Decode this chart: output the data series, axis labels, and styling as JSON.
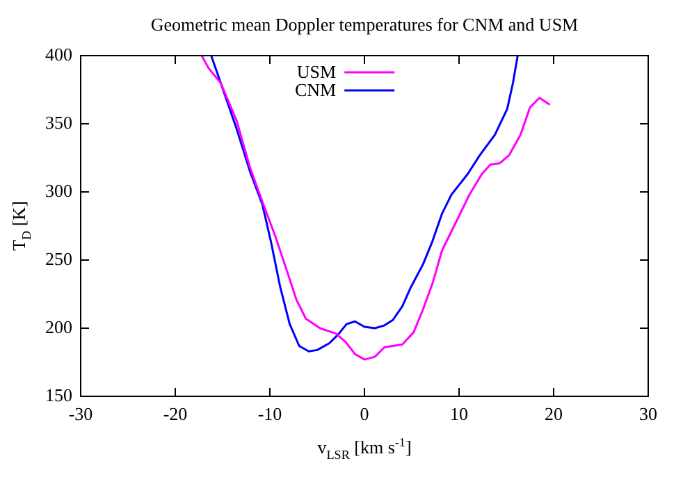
{
  "chart_data": {
    "type": "line",
    "title": "Geometric mean Doppler temperatures for CNM and USM",
    "xlabel": "v$_{LSR}$ [km s$^{-1}$]",
    "ylabel": "T$_{D}$ [K]",
    "xlim": [
      -30,
      30
    ],
    "xticks": [
      -30,
      -20,
      -10,
      0,
      10,
      20,
      30
    ],
    "ylim": [
      150,
      400
    ],
    "yticks": [
      150,
      200,
      250,
      300,
      350,
      400
    ],
    "grid": false,
    "legend": "top",
    "marker": "none",
    "line_style": "solid",
    "series": [
      {
        "name": "USM",
        "color": "#ff00ff",
        "x": [
          -17.2,
          -16.5,
          -15.2,
          -13.5,
          -12.1,
          -10.8,
          -9.4,
          -8.1,
          -7.2,
          -6.2,
          -4.7,
          -3,
          -2,
          -1,
          0,
          1.1,
          2.1,
          3,
          4,
          5.2,
          6.2,
          7.2,
          8.2,
          9.9,
          11.1,
          12.4,
          13.3,
          14.3,
          15.3,
          16.5,
          17.5,
          18.5,
          19.6
        ],
        "values": [
          400,
          391,
          380,
          352,
          318,
          293,
          267,
          240,
          221,
          207,
          200,
          196,
          190,
          181,
          177,
          179,
          186,
          187,
          188,
          197,
          214,
          233,
          257,
          281,
          298,
          313,
          320,
          321,
          327,
          342,
          362,
          369,
          364
        ]
      },
      {
        "name": "CNM",
        "color": "#0000ff",
        "x": [
          -16.2,
          -15,
          -13.5,
          -12.1,
          -10.8,
          -9.9,
          -8.9,
          -7.9,
          -6.9,
          -5.9,
          -5,
          -3.7,
          -2.7,
          -1.9,
          -1,
          0,
          1.1,
          2.1,
          3,
          4,
          4.9,
          6.2,
          7.2,
          8.2,
          9.2,
          10.9,
          12.2,
          13.8,
          15.1,
          15.7,
          16.2
        ],
        "values": [
          400,
          376,
          346,
          315,
          291,
          264,
          230,
          203,
          187,
          183,
          184,
          189,
          196,
          203,
          205,
          201,
          200,
          202,
          206,
          216,
          230,
          247,
          264,
          284,
          298,
          313,
          327,
          342,
          361,
          380,
          400
        ]
      }
    ]
  }
}
